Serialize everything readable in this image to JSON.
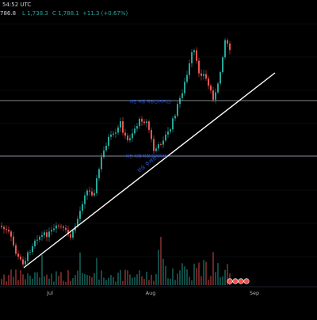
{
  "header": {
    "clock": "54:52 UTC",
    "ohlc_fragment": "786.8",
    "low_value": "L 1,738.3",
    "close_value": "C 1,788.1",
    "change_value": "+11.3 (+0.67%)"
  },
  "annotations": {
    "upper_level": "이전 저항 하향선(지지선)",
    "lower_level": "이전 저항 하향선(지지선)",
    "trendline": "상승 추세선"
  },
  "x_axis": {
    "labels": [
      "Jul",
      "Aug",
      "Sep"
    ]
  },
  "colors": {
    "background": "#000000",
    "bullish": "#26a69a",
    "bearish": "#ef5350",
    "level_line": "#787b86",
    "trendline": "#ffffff",
    "annotation_text": "#2962ff"
  },
  "chart_data": {
    "type": "candlestick",
    "title": "",
    "xlabel": "",
    "ylabel": "",
    "x_ticks": [
      "Jul",
      "Aug",
      "Sep"
    ],
    "grid": true,
    "legend": "none"
  }
}
